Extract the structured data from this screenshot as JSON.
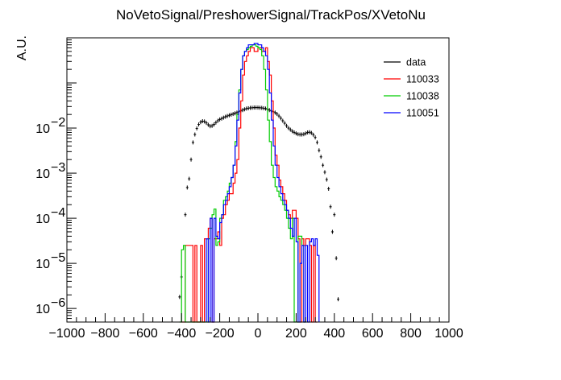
{
  "chart_data": {
    "type": "histogram-step",
    "title": "NoVetoSignal/PreshowerSignal/TrackPos/XVetoNu",
    "xlabel": "",
    "ylabel": "A.U.",
    "xlim": [
      -1000,
      1000
    ],
    "ylim": [
      5e-07,
      1.0
    ],
    "yscale": "log",
    "grid": false,
    "legend_position": "top-right",
    "x_ticks": [
      -1000,
      -800,
      -600,
      -400,
      -200,
      0,
      200,
      400,
      600,
      800,
      1000
    ],
    "x_tick_labels": [
      "−1000",
      "−800",
      "−600",
      "−400",
      "−200",
      "0",
      "200",
      "400",
      "600",
      "800",
      "1000"
    ],
    "y_ticks": [
      1e-06,
      1e-05,
      0.0001,
      0.001,
      0.01
    ],
    "y_tick_labels": [
      {
        "base": "10",
        "exp": "−6"
      },
      {
        "base": "10",
        "exp": "−5"
      },
      {
        "base": "10",
        "exp": "−4"
      },
      {
        "base": "10",
        "exp": "−3"
      },
      {
        "base": "10",
        "exp": "−2"
      }
    ],
    "legend": [
      {
        "label": "data",
        "color": "#000000",
        "style": "marker"
      },
      {
        "label": "110033",
        "color": "#ff0000",
        "style": "line"
      },
      {
        "label": "110038",
        "color": "#00cc00",
        "style": "line"
      },
      {
        "label": "110051",
        "color": "#0000ff",
        "style": "line"
      }
    ],
    "series": [
      {
        "name": "data",
        "kind": "points",
        "color": "#000000",
        "x": [
          -410,
          -400,
          -380,
          -370,
          -360,
          -350,
          -340,
          -330,
          -320,
          -310,
          -300,
          -290,
          -280,
          -270,
          -260,
          -250,
          -240,
          -230,
          -220,
          -210,
          -200,
          -190,
          -180,
          -170,
          -160,
          -150,
          -140,
          -130,
          -120,
          -110,
          -100,
          -90,
          -80,
          -70,
          -60,
          -50,
          -40,
          -30,
          -20,
          -10,
          0,
          10,
          20,
          30,
          40,
          50,
          60,
          70,
          80,
          90,
          100,
          110,
          120,
          130,
          140,
          150,
          160,
          170,
          180,
          190,
          200,
          210,
          220,
          230,
          240,
          250,
          260,
          270,
          280,
          290,
          300,
          310,
          320,
          330,
          340,
          350,
          360,
          370,
          380,
          390,
          400,
          410,
          420
        ],
        "y": [
          1.8e-06,
          5e-06,
          0.00012,
          0.00048,
          0.00075,
          0.002,
          0.0048,
          0.0072,
          0.0098,
          0.012,
          0.0135,
          0.0142,
          0.014,
          0.013,
          0.0118,
          0.011,
          0.0112,
          0.012,
          0.0132,
          0.0145,
          0.0155,
          0.0162,
          0.017,
          0.0178,
          0.0185,
          0.0192,
          0.0198,
          0.0205,
          0.0212,
          0.022,
          0.023,
          0.024,
          0.025,
          0.026,
          0.027,
          0.0275,
          0.028,
          0.0282,
          0.0285,
          0.0285,
          0.0285,
          0.0282,
          0.028,
          0.0275,
          0.027,
          0.026,
          0.025,
          0.024,
          0.023,
          0.022,
          0.0205,
          0.0185,
          0.0165,
          0.0145,
          0.0128,
          0.0112,
          0.01,
          0.0092,
          0.0085,
          0.008,
          0.0076,
          0.0073,
          0.0072,
          0.0072,
          0.0073,
          0.0076,
          0.008,
          0.0081,
          0.0078,
          0.0071,
          0.0062,
          0.0048,
          0.0032,
          0.0023,
          0.0015,
          0.00105,
          0.00072,
          0.00045,
          0.00018,
          5e-05,
          0.00012,
          1.3e-05,
          1.6e-06
        ]
      },
      {
        "name": "110033",
        "kind": "step",
        "color": "#ff0000",
        "edges": [
          -400,
          -380,
          -340,
          -330,
          -320,
          -300,
          -290,
          -280,
          -270,
          -260,
          -250,
          -240,
          -230,
          -220,
          -210,
          -200,
          -190,
          -180,
          -170,
          -160,
          -150,
          -140,
          -130,
          -120,
          -110,
          -100,
          -90,
          -80,
          -70,
          -60,
          -50,
          -40,
          -30,
          -20,
          -10,
          0,
          10,
          20,
          30,
          40,
          50,
          60,
          70,
          80,
          90,
          100,
          110,
          120,
          130,
          140,
          150,
          160,
          170,
          180,
          190,
          200,
          210,
          220,
          230,
          240,
          250,
          260,
          270,
          280,
          290,
          300,
          310
        ],
        "values": [
          0,
          2.5e-05,
          0,
          2.5e-05,
          0,
          2.5e-05,
          0,
          3.5e-05,
          3.5e-05,
          6e-05,
          0.0001,
          0,
          3.5e-05,
          3.5e-05,
          5e-05,
          2.5e-05,
          0.0001,
          0.00012,
          0.0002,
          0.00025,
          0.00035,
          0.00035,
          0.0006,
          0.001,
          0.002,
          0.01,
          0.04,
          0.15,
          0.3,
          0.4,
          0.5,
          0.6,
          0.6,
          0.5,
          0.5,
          0.6,
          0.6,
          0.5,
          0.5,
          0.6,
          0.3,
          0.15,
          0.04,
          0.01,
          0.0025,
          0.0015,
          0.0007,
          0.0005,
          0.00035,
          0.00025,
          0.00015,
          0.00012,
          0.0001,
          0.00015,
          0.00015,
          0.0001,
          3.5e-05,
          0,
          3.5e-05,
          2.5e-05,
          3.5e-05,
          3.5e-05,
          2.5e-05,
          0,
          2.5e-05,
          0
        ]
      },
      {
        "name": "110038",
        "kind": "step",
        "color": "#00cc00",
        "edges": [
          -410,
          -400,
          -390,
          -380,
          -260,
          -250,
          -240,
          -230,
          -220,
          -210,
          -200,
          -190,
          -180,
          -170,
          -160,
          -150,
          -140,
          -130,
          -120,
          -110,
          -100,
          -90,
          -80,
          -70,
          -60,
          -50,
          -40,
          -30,
          -20,
          -10,
          0,
          10,
          20,
          30,
          40,
          50,
          60,
          70,
          80,
          90,
          100,
          110,
          120,
          130,
          140,
          150,
          160,
          170,
          180,
          190,
          200,
          210,
          220,
          230,
          240,
          250
        ],
        "values": [
          0,
          2e-05,
          2.5e-05,
          0,
          3.5e-05,
          6e-05,
          0.00012,
          0.00016,
          2.5e-05,
          3e-05,
          0.0001,
          0.00012,
          0.00025,
          0.0003,
          0.0004,
          0.0006,
          0.0008,
          0.0015,
          0.005,
          0.02,
          0.07,
          0.2,
          0.4,
          0.5,
          0.55,
          0.6,
          0.65,
          0.7,
          0.7,
          0.65,
          0.6,
          0.55,
          0.4,
          0.2,
          0.07,
          0.015,
          0.005,
          0.0015,
          0.0008,
          0.0005,
          0.0004,
          0.0003,
          0.00025,
          0.0002,
          0.00015,
          0.0001,
          6e-05,
          3.5e-05,
          0.0001,
          0,
          0,
          4e-05,
          4e-05,
          2.5e-05,
          0
        ]
      },
      {
        "name": "110051",
        "kind": "step",
        "color": "#0000ff",
        "edges": [
          -270,
          -260,
          -250,
          -240,
          -230,
          -220,
          -210,
          -200,
          -190,
          -180,
          -170,
          -160,
          -150,
          -140,
          -130,
          -120,
          -110,
          -100,
          -90,
          -80,
          -70,
          -60,
          -50,
          -40,
          -30,
          -20,
          -10,
          0,
          10,
          20,
          30,
          40,
          50,
          60,
          70,
          80,
          90,
          100,
          110,
          120,
          130,
          140,
          150,
          160,
          170,
          180,
          190,
          200,
          210,
          220,
          230,
          240,
          250,
          260,
          270,
          280,
          290,
          300,
          310,
          320
        ],
        "values": [
          3.5e-05,
          0,
          0.0001,
          0,
          0.0001,
          4e-05,
          3.5e-05,
          8e-05,
          0.00012,
          0.0002,
          0.00025,
          0.00035,
          0.0005,
          0.0008,
          0.0015,
          0.004,
          0.015,
          0.06,
          0.2,
          0.4,
          0.5,
          0.6,
          0.7,
          0.7,
          0.7,
          0.75,
          0.75,
          0.7,
          0.7,
          0.6,
          0.5,
          0.4,
          0.2,
          0.06,
          0.015,
          0.004,
          0.0015,
          0.0008,
          0.0005,
          0.00035,
          0.00025,
          0.0002,
          0.00015,
          0.0001,
          6e-05,
          4e-05,
          0.0001,
          3e-05,
          0,
          1e-05,
          2.5e-05,
          0,
          2.5e-05,
          0,
          3e-05,
          3.5e-05,
          2.5e-05,
          3.5e-05,
          1.5e-05,
          0
        ]
      }
    ]
  }
}
